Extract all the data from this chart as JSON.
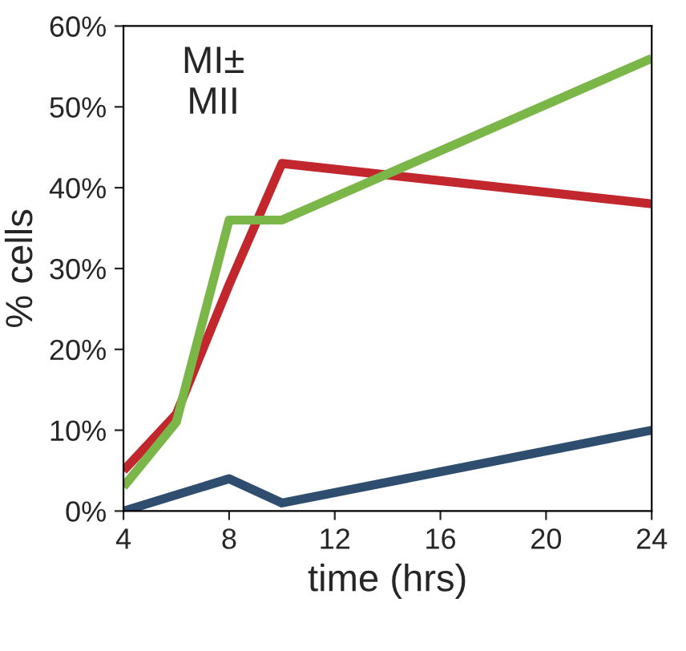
{
  "chart_data": {
    "type": "line",
    "xlabel": "time (hrs)",
    "ylabel": "% cells",
    "annotations": [
      "MI±\nMII"
    ],
    "xlim": [
      4,
      24
    ],
    "xticks": [
      4,
      8,
      12,
      16,
      20,
      24
    ],
    "ylim": [
      0,
      0.6
    ],
    "yticks": [
      {
        "value": 0,
        "label": "0%"
      },
      {
        "value": 0.1,
        "label": "10%"
      },
      {
        "value": 0.2,
        "label": "20%"
      },
      {
        "value": 0.3,
        "label": "30%"
      },
      {
        "value": 0.4,
        "label": "40%"
      },
      {
        "value": 0.5,
        "label": "50%"
      },
      {
        "value": 0.6,
        "label": "60%"
      }
    ],
    "marker": "none",
    "line_style": "solid",
    "series": [
      {
        "color": "#c1272d",
        "x": [
          4,
          6,
          8,
          10,
          24
        ],
        "values": [
          0.05,
          0.12,
          0.28,
          0.43,
          0.38
        ]
      },
      {
        "color": "#2f4d6f",
        "x": [
          4,
          6,
          8,
          10,
          24
        ],
        "values": [
          0.0,
          0.02,
          0.04,
          0.01,
          0.1
        ]
      },
      {
        "color": "#7ab648",
        "x": [
          4,
          6,
          8,
          10,
          24
        ],
        "values": [
          0.03,
          0.11,
          0.36,
          0.36,
          0.56
        ]
      }
    ]
  }
}
